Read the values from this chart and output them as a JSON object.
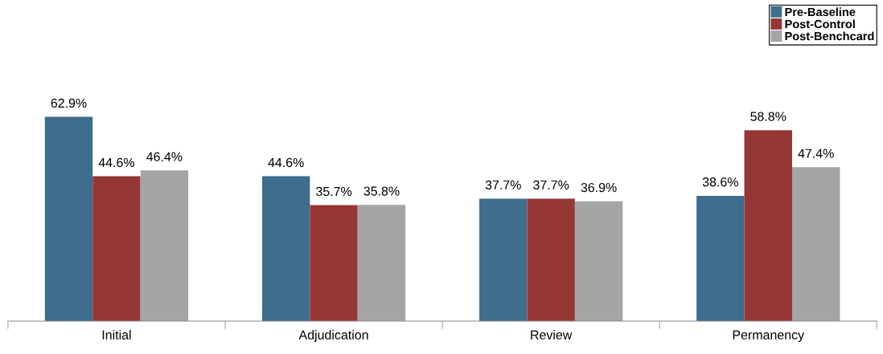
{
  "chart_data": {
    "type": "bar",
    "categories": [
      "Initial",
      "Adjudication",
      "Review",
      "Permanency"
    ],
    "series": [
      {
        "name": "Pre-Baseline",
        "color": "#3e6d8e",
        "values": [
          62.9,
          44.6,
          37.7,
          38.6
        ],
        "value_labels": [
          "62.9%",
          "44.6%",
          "37.7%",
          "38.6%"
        ]
      },
      {
        "name": "Post-Control",
        "color": "#943735",
        "values": [
          44.6,
          35.7,
          37.7,
          58.8
        ],
        "value_labels": [
          "44.6%",
          "35.7%",
          "37.7%",
          "58.8%"
        ]
      },
      {
        "name": "Post-Benchcard",
        "color": "#a5a5a8",
        "values": [
          46.4,
          35.8,
          36.9,
          47.4
        ],
        "value_labels": [
          "46.4%",
          "35.8%",
          "36.9%",
          "47.4%"
        ]
      }
    ],
    "tick_labels": "x",
    "legend": "top right",
    "grid": false
  }
}
